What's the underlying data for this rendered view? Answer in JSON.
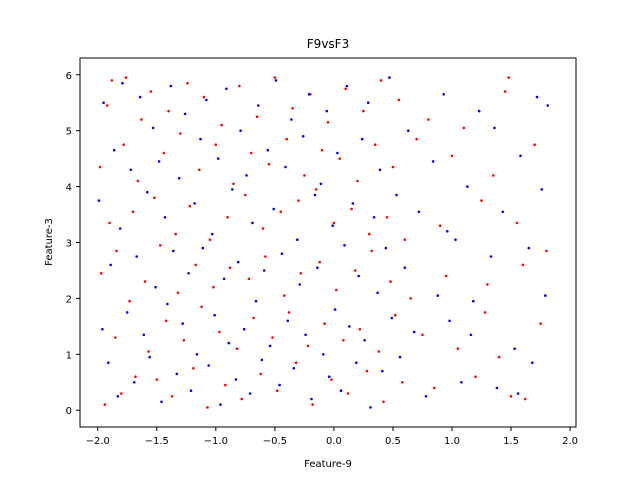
{
  "chart_data": {
    "type": "scatter",
    "title": "F9vsF3",
    "xlabel": "Feature-9",
    "ylabel": "Feature-3",
    "xlim": [
      -2.15,
      2.05
    ],
    "ylim": [
      -0.3,
      6.3
    ],
    "xticks": [
      -2.0,
      -1.5,
      -1.0,
      -0.5,
      0.0,
      0.5,
      1.0,
      1.5,
      2.0
    ],
    "xtick_labels": [
      "−2.0",
      "−1.5",
      "−1.0",
      "−0.5",
      "0.0",
      "0.5",
      "1.0",
      "1.5",
      "2.0"
    ],
    "yticks": [
      0,
      1,
      2,
      3,
      4,
      5,
      6
    ],
    "ytick_labels": [
      "0",
      "1",
      "2",
      "3",
      "4",
      "5",
      "6"
    ],
    "grid": false,
    "legend": "none",
    "colors": {
      "red": "#ff0000",
      "blue": "#0000ff"
    },
    "series": [
      {
        "color": "#ff0000",
        "points": [
          [
            -1.98,
            4.35
          ],
          [
            -1.97,
            2.45
          ],
          [
            -1.94,
            0.1
          ],
          [
            -1.92,
            5.45
          ],
          [
            -1.9,
            3.35
          ],
          [
            -1.88,
            5.9
          ],
          [
            -1.85,
            1.3
          ],
          [
            -1.84,
            2.85
          ],
          [
            -1.8,
            0.3
          ],
          [
            -1.78,
            4.75
          ],
          [
            -1.76,
            5.95
          ],
          [
            -1.73,
            1.95
          ],
          [
            -1.7,
            3.55
          ],
          [
            -1.68,
            0.6
          ],
          [
            -1.66,
            4.1
          ],
          [
            -1.63,
            5.2
          ],
          [
            -1.6,
            2.3
          ],
          [
            -1.57,
            1.05
          ],
          [
            -1.55,
            5.7
          ],
          [
            -1.52,
            3.8
          ],
          [
            -1.5,
            0.55
          ],
          [
            -1.47,
            2.95
          ],
          [
            -1.44,
            4.6
          ],
          [
            -1.42,
            1.6
          ],
          [
            -1.4,
            5.35
          ],
          [
            -1.37,
            0.25
          ],
          [
            -1.34,
            3.15
          ],
          [
            -1.32,
            2.1
          ],
          [
            -1.3,
            4.95
          ],
          [
            -1.27,
            1.25
          ],
          [
            -1.24,
            5.85
          ],
          [
            -1.22,
            3.65
          ],
          [
            -1.19,
            0.75
          ],
          [
            -1.17,
            2.6
          ],
          [
            -1.14,
            4.3
          ],
          [
            -1.12,
            1.85
          ],
          [
            -1.1,
            5.6
          ],
          [
            -1.07,
            0.05
          ],
          [
            -1.05,
            3.05
          ],
          [
            -1.02,
            2.2
          ],
          [
            -1.0,
            4.75
          ],
          [
            -0.97,
            1.4
          ],
          [
            -0.95,
            5.1
          ],
          [
            -0.92,
            0.45
          ],
          [
            -0.9,
            3.45
          ],
          [
            -0.88,
            2.55
          ],
          [
            -0.85,
            4.05
          ],
          [
            -0.82,
            1.1
          ],
          [
            -0.8,
            5.8
          ],
          [
            -0.78,
            0.2
          ],
          [
            -0.75,
            3.85
          ],
          [
            -0.72,
            2.35
          ],
          [
            -0.7,
            4.6
          ],
          [
            -0.68,
            1.65
          ],
          [
            -0.65,
            5.25
          ],
          [
            -0.62,
            0.65
          ],
          [
            -0.6,
            3.25
          ],
          [
            -0.58,
            2.75
          ],
          [
            -0.55,
            4.4
          ],
          [
            -0.52,
            1.3
          ],
          [
            -0.5,
            5.95
          ],
          [
            -0.48,
            0.35
          ],
          [
            -0.45,
            3.55
          ],
          [
            -0.42,
            2.05
          ],
          [
            -0.4,
            4.85
          ],
          [
            -0.38,
            1.75
          ],
          [
            -0.35,
            5.4
          ],
          [
            -0.32,
            0.85
          ],
          [
            -0.3,
            3.75
          ],
          [
            -0.28,
            2.45
          ],
          [
            -0.25,
            4.2
          ],
          [
            -0.22,
            1.15
          ],
          [
            -0.2,
            5.65
          ],
          [
            -0.18,
            0.1
          ],
          [
            -0.15,
            3.95
          ],
          [
            -0.12,
            2.65
          ],
          [
            -0.1,
            4.65
          ],
          [
            -0.08,
            1.55
          ],
          [
            -0.05,
            5.15
          ],
          [
            -0.02,
            0.55
          ],
          [
            0.0,
            3.35
          ],
          [
            0.02,
            2.15
          ],
          [
            0.05,
            4.5
          ],
          [
            0.08,
            1.25
          ],
          [
            0.1,
            5.75
          ],
          [
            0.12,
            0.3
          ],
          [
            0.15,
            3.6
          ],
          [
            0.18,
            2.5
          ],
          [
            0.2,
            4.1
          ],
          [
            0.22,
            1.45
          ],
          [
            0.25,
            5.35
          ],
          [
            0.28,
            0.7
          ],
          [
            0.3,
            3.15
          ],
          [
            0.32,
            2.85
          ],
          [
            0.35,
            4.75
          ],
          [
            0.38,
            1.05
          ],
          [
            0.4,
            5.9
          ],
          [
            0.42,
            0.15
          ],
          [
            0.45,
            3.45
          ],
          [
            0.48,
            2.3
          ],
          [
            0.5,
            4.35
          ],
          [
            0.52,
            1.7
          ],
          [
            0.55,
            5.55
          ],
          [
            0.58,
            0.5
          ],
          [
            0.6,
            3.05
          ],
          [
            0.65,
            2.0
          ],
          [
            0.7,
            4.85
          ],
          [
            0.75,
            1.35
          ],
          [
            0.8,
            5.2
          ],
          [
            0.85,
            0.4
          ],
          [
            0.9,
            3.3
          ],
          [
            0.95,
            2.4
          ],
          [
            1.0,
            4.55
          ],
          [
            1.05,
            1.1
          ],
          [
            1.1,
            5.05
          ],
          [
            1.2,
            0.6
          ],
          [
            1.25,
            3.75
          ],
          [
            1.3,
            2.25
          ],
          [
            1.35,
            4.2
          ],
          [
            1.4,
            0.95
          ],
          [
            1.45,
            5.7
          ],
          [
            1.5,
            0.25
          ],
          [
            1.55,
            3.35
          ],
          [
            1.6,
            2.6
          ],
          [
            1.7,
            4.75
          ],
          [
            1.75,
            1.55
          ],
          [
            1.8,
            2.85
          ],
          [
            1.62,
            0.2
          ],
          [
            1.48,
            5.95
          ],
          [
            1.28,
            1.75
          ]
        ]
      },
      {
        "color": "#0000ff",
        "points": [
          [
            -1.99,
            3.75
          ],
          [
            -1.96,
            1.45
          ],
          [
            -1.95,
            5.5
          ],
          [
            -1.91,
            0.85
          ],
          [
            -1.89,
            2.6
          ],
          [
            -1.86,
            4.65
          ],
          [
            -1.83,
            0.25
          ],
          [
            -1.81,
            3.25
          ],
          [
            -1.79,
            5.85
          ],
          [
            -1.75,
            1.75
          ],
          [
            -1.72,
            4.3
          ],
          [
            -1.69,
            0.5
          ],
          [
            -1.67,
            2.75
          ],
          [
            -1.64,
            5.6
          ],
          [
            -1.61,
            1.35
          ],
          [
            -1.58,
            3.9
          ],
          [
            -1.56,
            0.95
          ],
          [
            -1.53,
            5.05
          ],
          [
            -1.51,
            2.2
          ],
          [
            -1.48,
            4.45
          ],
          [
            -1.46,
            0.15
          ],
          [
            -1.43,
            3.45
          ],
          [
            -1.41,
            1.9
          ],
          [
            -1.38,
            5.8
          ],
          [
            -1.36,
            2.85
          ],
          [
            -1.33,
            0.65
          ],
          [
            -1.31,
            4.15
          ],
          [
            -1.28,
            1.55
          ],
          [
            -1.26,
            5.3
          ],
          [
            -1.23,
            2.45
          ],
          [
            -1.21,
            0.35
          ],
          [
            -1.18,
            3.7
          ],
          [
            -1.16,
            1.0
          ],
          [
            -1.13,
            4.85
          ],
          [
            -1.11,
            2.9
          ],
          [
            -1.08,
            5.55
          ],
          [
            -1.06,
            0.8
          ],
          [
            -1.03,
            3.15
          ],
          [
            -1.01,
            1.7
          ],
          [
            -0.98,
            4.5
          ],
          [
            -0.96,
            0.1
          ],
          [
            -0.93,
            2.35
          ],
          [
            -0.91,
            5.75
          ],
          [
            -0.89,
            1.2
          ],
          [
            -0.86,
            3.95
          ],
          [
            -0.83,
            0.55
          ],
          [
            -0.81,
            2.65
          ],
          [
            -0.79,
            5.0
          ],
          [
            -0.76,
            1.45
          ],
          [
            -0.74,
            4.2
          ],
          [
            -0.71,
            0.3
          ],
          [
            -0.69,
            3.35
          ],
          [
            -0.66,
            1.95
          ],
          [
            -0.64,
            5.45
          ],
          [
            -0.61,
            0.9
          ],
          [
            -0.59,
            2.5
          ],
          [
            -0.56,
            4.65
          ],
          [
            -0.54,
            1.15
          ],
          [
            -0.51,
            3.6
          ],
          [
            -0.49,
            5.9
          ],
          [
            -0.46,
            0.45
          ],
          [
            -0.44,
            2.8
          ],
          [
            -0.41,
            4.35
          ],
          [
            -0.39,
            1.6
          ],
          [
            -0.36,
            5.2
          ],
          [
            -0.34,
            0.75
          ],
          [
            -0.31,
            3.05
          ],
          [
            -0.29,
            2.25
          ],
          [
            -0.26,
            4.9
          ],
          [
            -0.24,
            1.35
          ],
          [
            -0.21,
            5.65
          ],
          [
            -0.19,
            0.2
          ],
          [
            -0.16,
            3.85
          ],
          [
            -0.14,
            2.55
          ],
          [
            -0.11,
            4.05
          ],
          [
            -0.09,
            1.0
          ],
          [
            -0.06,
            5.35
          ],
          [
            -0.04,
            0.6
          ],
          [
            -0.01,
            3.3
          ],
          [
            0.01,
            1.8
          ],
          [
            0.03,
            4.6
          ],
          [
            0.06,
            0.35
          ],
          [
            0.09,
            2.95
          ],
          [
            0.11,
            5.8
          ],
          [
            0.13,
            1.5
          ],
          [
            0.16,
            3.7
          ],
          [
            0.19,
            0.85
          ],
          [
            0.21,
            2.4
          ],
          [
            0.24,
            4.85
          ],
          [
            0.26,
            1.25
          ],
          [
            0.29,
            5.5
          ],
          [
            0.31,
            0.05
          ],
          [
            0.34,
            3.45
          ],
          [
            0.37,
            2.1
          ],
          [
            0.39,
            4.3
          ],
          [
            0.41,
            0.7
          ],
          [
            0.44,
            2.9
          ],
          [
            0.47,
            5.95
          ],
          [
            0.49,
            1.65
          ],
          [
            0.53,
            3.85
          ],
          [
            0.56,
            0.95
          ],
          [
            0.6,
            2.55
          ],
          [
            0.63,
            5.0
          ],
          [
            0.68,
            1.4
          ],
          [
            0.72,
            3.55
          ],
          [
            0.78,
            0.25
          ],
          [
            0.84,
            4.45
          ],
          [
            0.88,
            2.05
          ],
          [
            0.93,
            5.65
          ],
          [
            0.98,
            1.6
          ],
          [
            1.03,
            3.05
          ],
          [
            1.08,
            0.5
          ],
          [
            1.13,
            4.0
          ],
          [
            1.18,
            1.95
          ],
          [
            1.23,
            5.35
          ],
          [
            1.33,
            2.75
          ],
          [
            1.38,
            0.4
          ],
          [
            1.43,
            3.55
          ],
          [
            1.53,
            1.1
          ],
          [
            1.58,
            4.55
          ],
          [
            1.65,
            2.9
          ],
          [
            1.68,
            0.85
          ],
          [
            1.72,
            5.6
          ],
          [
            1.76,
            3.95
          ],
          [
            1.79,
            2.05
          ],
          [
            1.81,
            5.45
          ],
          [
            1.56,
            0.3
          ],
          [
            1.36,
            5.05
          ],
          [
            1.16,
            1.35
          ],
          [
            0.96,
            3.2
          ]
        ]
      }
    ]
  }
}
